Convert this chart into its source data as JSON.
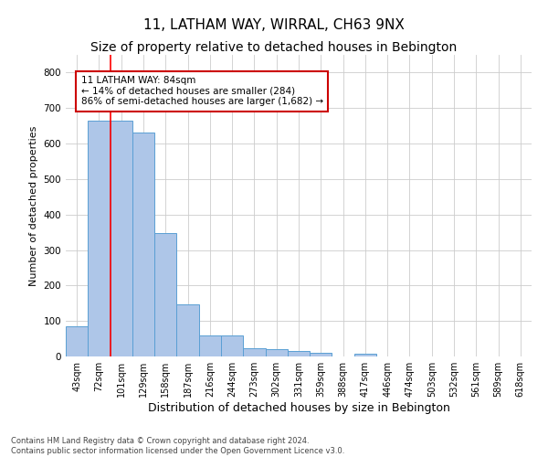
{
  "title": "11, LATHAM WAY, WIRRAL, CH63 9NX",
  "subtitle": "Size of property relative to detached houses in Bebington",
  "xlabel": "Distribution of detached houses by size in Bebington",
  "ylabel": "Number of detached properties",
  "categories": [
    "43sqm",
    "72sqm",
    "101sqm",
    "129sqm",
    "158sqm",
    "187sqm",
    "216sqm",
    "244sqm",
    "273sqm",
    "302sqm",
    "331sqm",
    "359sqm",
    "388sqm",
    "417sqm",
    "446sqm",
    "474sqm",
    "503sqm",
    "532sqm",
    "561sqm",
    "589sqm",
    "618sqm"
  ],
  "values": [
    85,
    665,
    665,
    630,
    348,
    148,
    60,
    60,
    22,
    20,
    15,
    10,
    0,
    8,
    0,
    0,
    0,
    0,
    0,
    0,
    0
  ],
  "bar_color": "#aec6e8",
  "bar_edge_color": "#5a9fd4",
  "red_line_x": 1.5,
  "annotation_text": "11 LATHAM WAY: 84sqm\n← 14% of detached houses are smaller (284)\n86% of semi-detached houses are larger (1,682) →",
  "annotation_box_color": "#ffffff",
  "annotation_box_edge": "#cc0000",
  "ylim": [
    0,
    850
  ],
  "yticks": [
    0,
    100,
    200,
    300,
    400,
    500,
    600,
    700,
    800
  ],
  "footer_line1": "Contains HM Land Registry data © Crown copyright and database right 2024.",
  "footer_line2": "Contains public sector information licensed under the Open Government Licence v3.0.",
  "bg_color": "#ffffff",
  "grid_color": "#cccccc",
  "title_fontsize": 11,
  "subtitle_fontsize": 10,
  "xlabel_fontsize": 9,
  "ylabel_fontsize": 8,
  "tick_fontsize": 7,
  "annotation_fontsize": 7.5,
  "footer_fontsize": 6
}
